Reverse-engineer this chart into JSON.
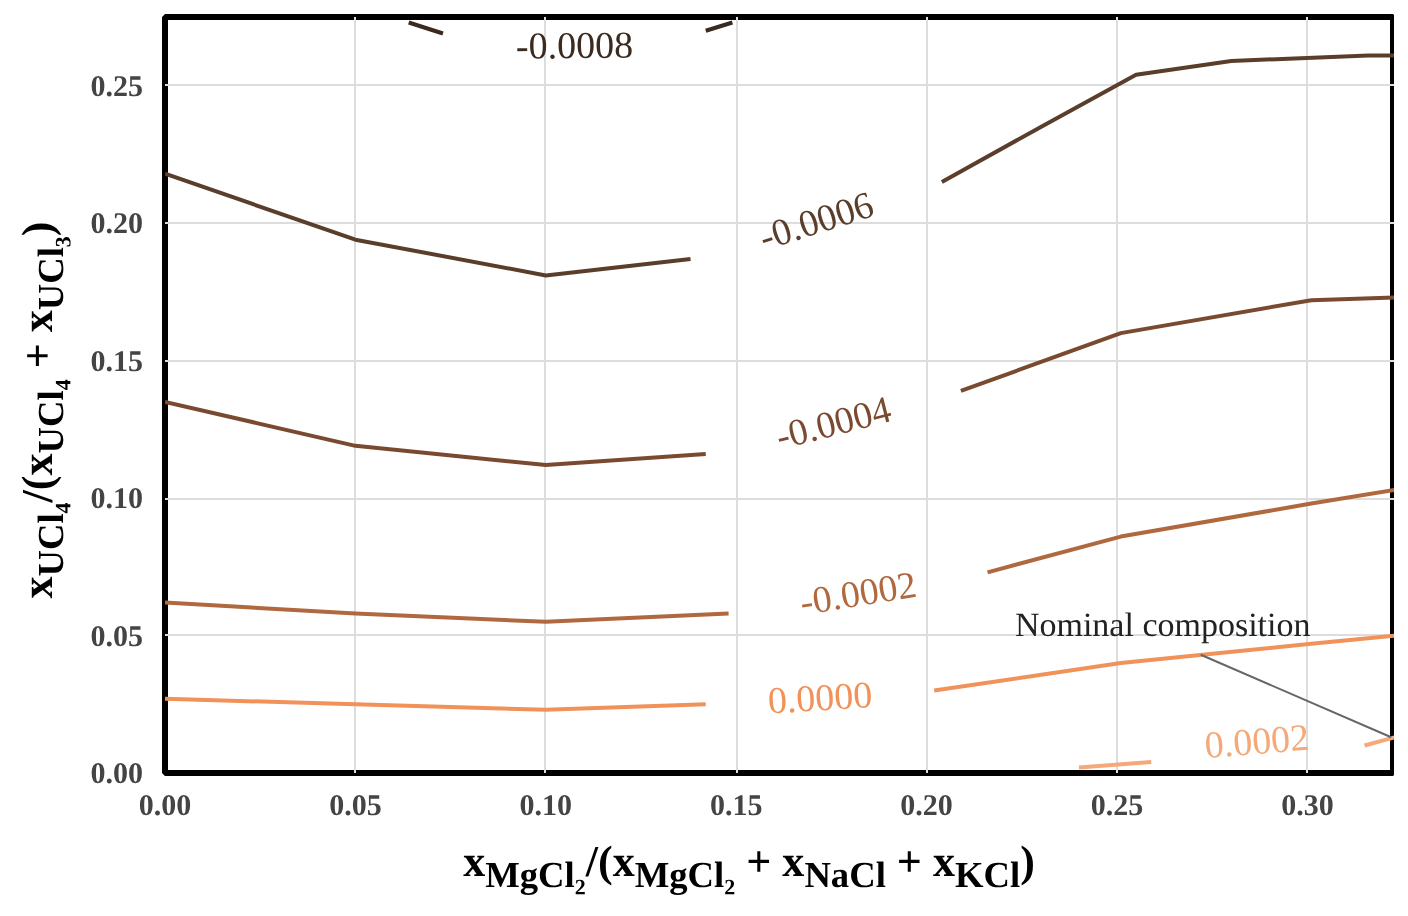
{
  "chart_data": {
    "type": "line",
    "xlabel": "x$_{MgCl₂}$/(x$_{MgCl₂}$ + x$_{NaCl}$ + x$_{KCl}$)",
    "ylabel": "x$_{UCl₄}$/(x$_{UCl₄}$ + x$_{UCl₃}$)",
    "xlim": [
      0,
      0.323
    ],
    "ylim": [
      0,
      0.275
    ],
    "xticks": [
      {
        "value": 0,
        "label": "0.00"
      },
      {
        "value": 0.05,
        "label": "0.05"
      },
      {
        "value": 0.1,
        "label": "0.10"
      },
      {
        "value": 0.15,
        "label": "0.15"
      },
      {
        "value": 0.2,
        "label": "0.20"
      },
      {
        "value": 0.25,
        "label": "0.25"
      },
      {
        "value": 0.3,
        "label": "0.30"
      }
    ],
    "yticks": [
      {
        "value": 0,
        "label": "0.00"
      },
      {
        "value": 0.05,
        "label": "0.05"
      },
      {
        "value": 0.1,
        "label": "0.10"
      },
      {
        "value": 0.15,
        "label": "0.15"
      },
      {
        "value": 0.2,
        "label": "0.20"
      },
      {
        "value": 0.25,
        "label": "0.25"
      }
    ],
    "grid": true,
    "marker": "none",
    "line_style": "solid",
    "series": [
      {
        "name": "-0.0008",
        "color": "#3b2a20",
        "x": [
          0.064,
          0.073,
          null,
          0.142,
          0.149
        ],
        "values": [
          0.273,
          0.269,
          null,
          0.27,
          0.273
        ]
      },
      {
        "name": "-0.0006",
        "color": "#5a3e2b",
        "x": [
          0,
          0.05,
          0.1,
          0.138,
          null,
          0.204,
          0.23,
          0.255,
          0.28,
          0.316,
          0.323
        ],
        "values": [
          0.218,
          0.194,
          0.181,
          0.187,
          null,
          0.215,
          0.235,
          0.254,
          0.259,
          0.261,
          0.261
        ]
      },
      {
        "name": "-0.0004",
        "color": "#7a4a30",
        "x": [
          0,
          0.05,
          0.1,
          0.142,
          null,
          0.209,
          0.251,
          0.301,
          0.323
        ],
        "values": [
          0.135,
          0.119,
          0.112,
          0.116,
          null,
          0.139,
          0.16,
          0.172,
          0.173
        ]
      },
      {
        "name": "-0.0002",
        "color": "#b0683e",
        "x": [
          0,
          0.05,
          0.1,
          0.148,
          null,
          0.216,
          0.251,
          0.301,
          0.323
        ],
        "values": [
          0.062,
          0.058,
          0.055,
          0.058,
          null,
          0.073,
          0.086,
          0.098,
          0.103
        ]
      },
      {
        "name": "0.0000",
        "color": "#f0925a",
        "x": [
          0,
          0.05,
          0.1,
          0.142,
          null,
          0.202,
          0.251,
          0.301,
          0.323
        ],
        "values": [
          0.027,
          0.025,
          0.023,
          0.025,
          null,
          0.03,
          0.04,
          0.047,
          0.05
        ]
      },
      {
        "name": "0.0002",
        "color": "#f5a878",
        "x": [
          0.24,
          0.259,
          null,
          0.315,
          0.323
        ],
        "values": [
          0.002,
          0.004,
          null,
          0.01,
          0.013
        ]
      }
    ],
    "annotations": [
      {
        "text": "Nominal composition",
        "x": 0.322,
        "y": 0.013
      }
    ]
  }
}
